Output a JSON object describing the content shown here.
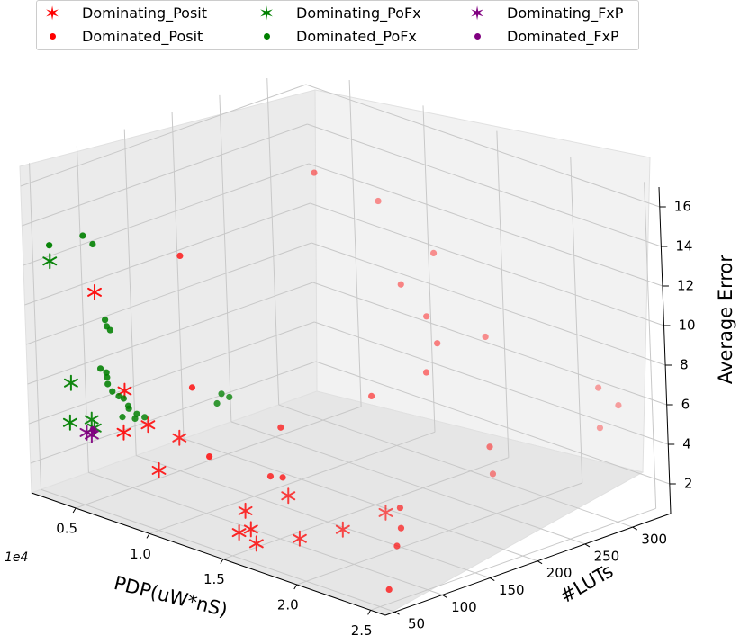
{
  "chart_data": {
    "type": "scatter",
    "projection": "3d",
    "title": "",
    "xlabel": "PDP(uW*nS)",
    "ylabel": "#LUTs",
    "zlabel": "Average Error",
    "x_offset_text": "1e4",
    "x_scale": 10000,
    "xlim": [
      0.2,
      2.6
    ],
    "ylim": [
      40,
      340
    ],
    "zlim": [
      0.5,
      17
    ],
    "x_ticks": [
      "0.5",
      "1.0",
      "1.5",
      "2.0",
      "2.5"
    ],
    "y_ticks": [
      "50",
      "100",
      "150",
      "200",
      "250",
      "300"
    ],
    "z_ticks": [
      "2",
      "4",
      "6",
      "8",
      "10",
      "12",
      "14",
      "16"
    ],
    "grid": true,
    "legend_position": "top",
    "series": [
      {
        "name": "Dominating_Posit",
        "marker": "star",
        "color": "#ff0000",
        "points": [
          [
            0.55,
            60,
            11.2
          ],
          [
            0.6,
            80,
            6.0
          ],
          [
            0.62,
            100,
            4.0
          ],
          [
            0.7,
            120,
            3.2
          ],
          [
            0.65,
            70,
            4.2
          ],
          [
            0.75,
            90,
            2.2
          ],
          [
            1.4,
            80,
            2.0
          ],
          [
            1.5,
            70,
            1.5
          ],
          [
            1.6,
            60,
            1.2
          ],
          [
            1.8,
            120,
            1.4
          ],
          [
            1.7,
            90,
            1.2
          ],
          [
            1.9,
            150,
            2.0
          ],
          [
            1.5,
            110,
            2.5
          ],
          [
            1.55,
            50,
            1.8
          ]
        ]
      },
      {
        "name": "Dominated_Posit",
        "marker": "dot",
        "color": "#ff0000",
        "points": [
          [
            0.5,
            300,
            13.0
          ],
          [
            0.8,
            320,
            12.0
          ],
          [
            1.3,
            300,
            11.0
          ],
          [
            1.2,
            280,
            9.5
          ],
          [
            1.5,
            260,
            9.0
          ],
          [
            1.7,
            240,
            8.5
          ],
          [
            0.55,
            150,
            11.5
          ],
          [
            0.8,
            120,
            6.0
          ],
          [
            1.5,
            200,
            6.0
          ],
          [
            1.2,
            150,
            4.5
          ],
          [
            2.2,
            330,
            6.0
          ],
          [
            2.4,
            300,
            5.0
          ],
          [
            2.4,
            320,
            5.8
          ],
          [
            2.3,
            200,
            5.5
          ],
          [
            1.75,
            220,
            7.5
          ],
          [
            1.9,
            260,
            9.0
          ],
          [
            1.1,
            90,
            3.8
          ],
          [
            1.4,
            120,
            3.0
          ],
          [
            2.0,
            150,
            2.5
          ],
          [
            2.2,
            120,
            2.5
          ],
          [
            2.3,
            100,
            2.2
          ],
          [
            2.5,
            60,
            1.2
          ],
          [
            1.25,
            130,
            2.5
          ],
          [
            2.05,
            240,
            2.8
          ]
        ]
      },
      {
        "name": "Dominating_PoFx",
        "marker": "star",
        "color": "#008000",
        "points": [
          [
            0.25,
            60,
            12.0
          ],
          [
            0.3,
            70,
            5.8
          ],
          [
            0.3,
            90,
            3.6
          ],
          [
            0.35,
            85,
            3.4
          ],
          [
            0.35,
            60,
            4.1
          ]
        ]
      },
      {
        "name": "Dominated_PoFx",
        "marker": "dot",
        "color": "#008000",
        "points": [
          [
            0.25,
            60,
            12.8
          ],
          [
            0.35,
            80,
            13.2
          ],
          [
            0.35,
            90,
            12.6
          ],
          [
            0.35,
            100,
            8.6
          ],
          [
            0.36,
            100,
            8.3
          ],
          [
            0.37,
            102,
            8.1
          ],
          [
            0.34,
            95,
            6.2
          ],
          [
            0.36,
            98,
            6.0
          ],
          [
            0.35,
            100,
            5.7
          ],
          [
            0.34,
            102,
            5.3
          ],
          [
            0.35,
            105,
            4.9
          ],
          [
            0.36,
            110,
            4.6
          ],
          [
            0.36,
            115,
            4.4
          ],
          [
            0.37,
            118,
            4.0
          ],
          [
            0.36,
            120,
            3.8
          ],
          [
            0.38,
            110,
            3.6
          ],
          [
            0.4,
            120,
            3.4
          ],
          [
            0.38,
            125,
            3.5
          ],
          [
            0.4,
            130,
            3.3
          ],
          [
            1.0,
            120,
            6.2
          ],
          [
            1.02,
            125,
            6.0
          ],
          [
            1.0,
            115,
            5.8
          ]
        ]
      },
      {
        "name": "Dominating_FxP",
        "marker": "star",
        "color": "#800080",
        "points": [
          [
            0.33,
            80,
            3.2
          ],
          [
            0.35,
            82,
            3.1
          ]
        ]
      },
      {
        "name": "Dominated_FxP",
        "marker": "dot",
        "color": "#800080",
        "points": [
          [
            0.34,
            85,
            3.3
          ],
          [
            0.34,
            86,
            3.2
          ]
        ]
      }
    ]
  }
}
